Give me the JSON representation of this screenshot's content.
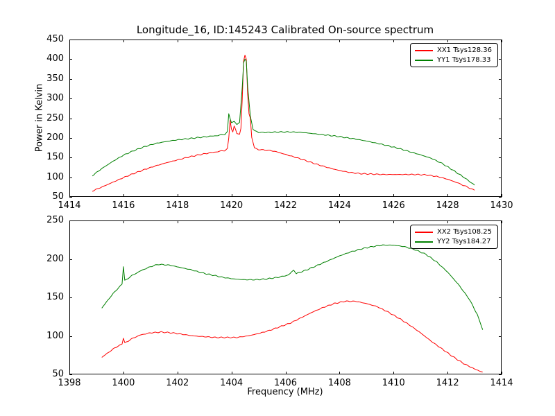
{
  "chart_data": [
    {
      "type": "line",
      "title": "Longitude_16, ID:145243 Calibrated On-source spectrum",
      "ylabel": "Power in Kelvin",
      "xlabel": "",
      "xlim": [
        1414,
        1430
      ],
      "ylim": [
        50,
        450
      ],
      "xticks": [
        1414,
        1416,
        1418,
        1420,
        1422,
        1424,
        1426,
        1428,
        1430
      ],
      "yticks": [
        50,
        100,
        150,
        200,
        250,
        300,
        350,
        400,
        450
      ],
      "grid": false,
      "legend_position": "upper right",
      "series": [
        {
          "name": "XX1 Tsys128.36",
          "color": "#ff0000",
          "points": [
            [
              1414.85,
              65
            ],
            [
              1415.2,
              75
            ],
            [
              1415.6,
              87
            ],
            [
              1416.0,
              99
            ],
            [
              1416.4,
              110
            ],
            [
              1416.8,
              120
            ],
            [
              1417.2,
              129
            ],
            [
              1417.6,
              137
            ],
            [
              1418.0,
              144
            ],
            [
              1418.4,
              151
            ],
            [
              1418.8,
              157
            ],
            [
              1419.2,
              162
            ],
            [
              1419.5,
              165
            ],
            [
              1419.75,
              168
            ],
            [
              1419.85,
              172
            ],
            [
              1419.9,
              200
            ],
            [
              1419.95,
              245
            ],
            [
              1420.0,
              222
            ],
            [
              1420.05,
              215
            ],
            [
              1420.1,
              230
            ],
            [
              1420.15,
              222
            ],
            [
              1420.2,
              212
            ],
            [
              1420.3,
              208
            ],
            [
              1420.35,
              225
            ],
            [
              1420.4,
              300
            ],
            [
              1420.45,
              395
            ],
            [
              1420.5,
              410
            ],
            [
              1420.55,
              400
            ],
            [
              1420.6,
              310
            ],
            [
              1420.65,
              262
            ],
            [
              1420.7,
              250
            ],
            [
              1420.75,
              200
            ],
            [
              1420.85,
              176
            ],
            [
              1421.0,
              170
            ],
            [
              1421.3,
              169
            ],
            [
              1421.6,
              166
            ],
            [
              1422.0,
              158
            ],
            [
              1422.4,
              150
            ],
            [
              1422.8,
              141
            ],
            [
              1423.2,
              132
            ],
            [
              1423.6,
              124
            ],
            [
              1424.0,
              117
            ],
            [
              1424.4,
              112
            ],
            [
              1424.8,
              109
            ],
            [
              1425.2,
              108
            ],
            [
              1425.6,
              107
            ],
            [
              1426.0,
              107
            ],
            [
              1426.4,
              107
            ],
            [
              1426.8,
              107
            ],
            [
              1427.2,
              106
            ],
            [
              1427.6,
              102
            ],
            [
              1428.0,
              95
            ],
            [
              1428.4,
              85
            ],
            [
              1428.7,
              76
            ],
            [
              1429.0,
              67
            ]
          ]
        },
        {
          "name": "YY1 Tsys178.33",
          "color": "#008000",
          "points": [
            [
              1414.85,
              104
            ],
            [
              1415.2,
              122
            ],
            [
              1415.6,
              140
            ],
            [
              1416.0,
              156
            ],
            [
              1416.4,
              168
            ],
            [
              1416.8,
              178
            ],
            [
              1417.2,
              186
            ],
            [
              1417.6,
              191
            ],
            [
              1418.0,
              195
            ],
            [
              1418.4,
              198
            ],
            [
              1418.8,
              201
            ],
            [
              1419.2,
              204
            ],
            [
              1419.5,
              206
            ],
            [
              1419.75,
              209
            ],
            [
              1419.85,
              215
            ],
            [
              1419.9,
              262
            ],
            [
              1419.95,
              250
            ],
            [
              1420.0,
              238
            ],
            [
              1420.1,
              242
            ],
            [
              1420.2,
              235
            ],
            [
              1420.3,
              238
            ],
            [
              1420.4,
              330
            ],
            [
              1420.45,
              390
            ],
            [
              1420.5,
              400
            ],
            [
              1420.55,
              395
            ],
            [
              1420.6,
              330
            ],
            [
              1420.7,
              255
            ],
            [
              1420.8,
              222
            ],
            [
              1421.0,
              214
            ],
            [
              1421.4,
              214
            ],
            [
              1421.8,
              215
            ],
            [
              1422.2,
              215
            ],
            [
              1422.6,
              214
            ],
            [
              1423.0,
              211
            ],
            [
              1423.4,
              208
            ],
            [
              1423.8,
              205
            ],
            [
              1424.2,
              201
            ],
            [
              1424.6,
              197
            ],
            [
              1425.0,
              192
            ],
            [
              1425.4,
              186
            ],
            [
              1425.8,
              180
            ],
            [
              1426.2,
              173
            ],
            [
              1426.6,
              165
            ],
            [
              1427.0,
              157
            ],
            [
              1427.4,
              148
            ],
            [
              1427.8,
              135
            ],
            [
              1428.2,
              118
            ],
            [
              1428.6,
              100
            ],
            [
              1429.0,
              80
            ]
          ]
        }
      ]
    },
    {
      "type": "line",
      "title": "",
      "ylabel": "",
      "xlabel": "Frequency (MHz)",
      "xlim": [
        1398,
        1414
      ],
      "ylim": [
        50,
        250
      ],
      "xticks": [
        1398,
        1400,
        1402,
        1404,
        1406,
        1408,
        1410,
        1412,
        1414
      ],
      "yticks": [
        50,
        100,
        150,
        200,
        250
      ],
      "grid": false,
      "legend_position": "upper right",
      "series": [
        {
          "name": "XX2 Tsys108.25",
          "color": "#ff0000",
          "points": [
            [
              1399.2,
              72
            ],
            [
              1399.5,
              80
            ],
            [
              1399.8,
              87
            ],
            [
              1399.95,
              90
            ],
            [
              1400.0,
              97
            ],
            [
              1400.05,
              91
            ],
            [
              1400.3,
              96
            ],
            [
              1400.6,
              101
            ],
            [
              1401.0,
              104
            ],
            [
              1401.4,
              105
            ],
            [
              1401.8,
              104
            ],
            [
              1402.2,
              102
            ],
            [
              1402.6,
              100
            ],
            [
              1403.0,
              99
            ],
            [
              1403.4,
              98
            ],
            [
              1403.8,
              98
            ],
            [
              1404.2,
              98
            ],
            [
              1404.6,
              100
            ],
            [
              1405.0,
              103
            ],
            [
              1405.4,
              107
            ],
            [
              1405.8,
              112
            ],
            [
              1406.2,
              117
            ],
            [
              1406.6,
              124
            ],
            [
              1407.0,
              131
            ],
            [
              1407.4,
              137
            ],
            [
              1407.8,
              142
            ],
            [
              1408.2,
              145
            ],
            [
              1408.6,
              145
            ],
            [
              1409.0,
              142
            ],
            [
              1409.4,
              138
            ],
            [
              1409.8,
              131
            ],
            [
              1410.2,
              123
            ],
            [
              1410.6,
              114
            ],
            [
              1411.0,
              104
            ],
            [
              1411.4,
              93
            ],
            [
              1411.8,
              83
            ],
            [
              1412.2,
              73
            ],
            [
              1412.6,
              64
            ],
            [
              1413.0,
              57
            ],
            [
              1413.3,
              53
            ]
          ]
        },
        {
          "name": "YY2 Tsys184.27",
          "color": "#008000",
          "points": [
            [
              1399.2,
              136
            ],
            [
              1399.5,
              150
            ],
            [
              1399.8,
              162
            ],
            [
              1399.95,
              168
            ],
            [
              1400.0,
              190
            ],
            [
              1400.05,
              172
            ],
            [
              1400.3,
              178
            ],
            [
              1400.6,
              184
            ],
            [
              1401.0,
              190
            ],
            [
              1401.3,
              193
            ],
            [
              1401.7,
              192
            ],
            [
              1402.1,
              189
            ],
            [
              1402.5,
              186
            ],
            [
              1402.9,
              182
            ],
            [
              1403.3,
              179
            ],
            [
              1403.7,
              176
            ],
            [
              1404.1,
              174
            ],
            [
              1404.5,
              173
            ],
            [
              1404.9,
              173
            ],
            [
              1405.3,
              174
            ],
            [
              1405.7,
              176
            ],
            [
              1406.1,
              179
            ],
            [
              1406.3,
              185
            ],
            [
              1406.4,
              181
            ],
            [
              1406.8,
              186
            ],
            [
              1407.2,
              192
            ],
            [
              1407.6,
              198
            ],
            [
              1408.0,
              204
            ],
            [
              1408.4,
              209
            ],
            [
              1408.8,
              213
            ],
            [
              1409.2,
              216
            ],
            [
              1409.6,
              218
            ],
            [
              1410.0,
              218
            ],
            [
              1410.4,
              216
            ],
            [
              1410.8,
              212
            ],
            [
              1411.2,
              206
            ],
            [
              1411.6,
              196
            ],
            [
              1412.0,
              183
            ],
            [
              1412.4,
              167
            ],
            [
              1412.8,
              148
            ],
            [
              1413.1,
              128
            ],
            [
              1413.3,
              108
            ]
          ]
        }
      ]
    }
  ]
}
